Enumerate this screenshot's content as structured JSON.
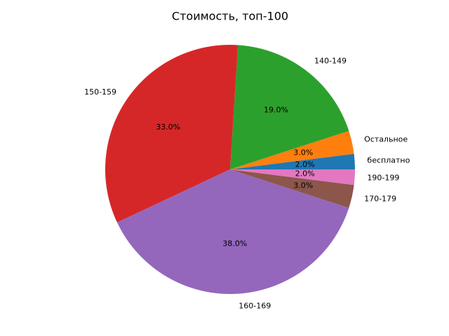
{
  "chart_data": {
    "type": "pie",
    "title": "Стоимость, топ-100",
    "categories": [
      "бесплатно",
      "Остальное",
      "140-149",
      "150-159",
      "160-169",
      "170-179",
      "190-199"
    ],
    "values": [
      2,
      3,
      19,
      33,
      38,
      3,
      2
    ],
    "value_labels": [
      "2.0%",
      "3.0%",
      "19.0%",
      "33.0%",
      "38.0%",
      "3.0%",
      "2.0%"
    ],
    "colors": [
      "#1f77b4",
      "#ff7f0e",
      "#2ca02c",
      "#d62728",
      "#9467bd",
      "#8c564b",
      "#e377c2"
    ]
  }
}
